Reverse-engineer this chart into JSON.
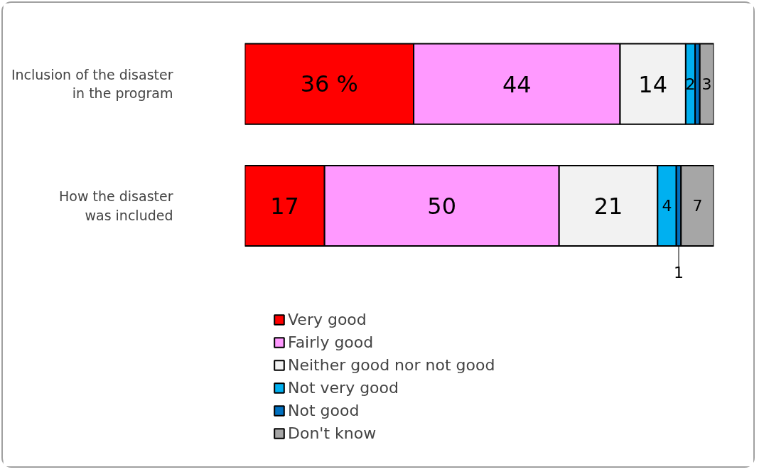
{
  "chart_data": {
    "type": "bar",
    "orientation": "horizontal",
    "stacked": true,
    "categories": [
      "Inclusion of the disaster in the program",
      "How the disaster was included"
    ],
    "series": [
      {
        "name": "Very good",
        "color": "#ff0000",
        "values": [
          36,
          17
        ],
        "value_labels": [
          "36 %",
          "17"
        ]
      },
      {
        "name": "Fairly good",
        "color": "#ff99ff",
        "values": [
          44,
          50
        ],
        "value_labels": [
          "44",
          "50"
        ]
      },
      {
        "name": "Neither good nor not good",
        "color": "#f2f2f2",
        "values": [
          14,
          21
        ],
        "value_labels": [
          "14",
          "21"
        ]
      },
      {
        "name": "Not very good",
        "color": "#00b0f0",
        "values": [
          2,
          4
        ],
        "value_labels": [
          "2",
          "4"
        ]
      },
      {
        "name": "Not good",
        "color": "#0070c0",
        "values": [
          1,
          1
        ],
        "value_labels": [
          null,
          "1"
        ]
      },
      {
        "name": "Don't know",
        "color": "#a6a6a6",
        "values": [
          3,
          7
        ],
        "value_labels": [
          "3",
          "7"
        ]
      }
    ],
    "legend": "bottom"
  }
}
